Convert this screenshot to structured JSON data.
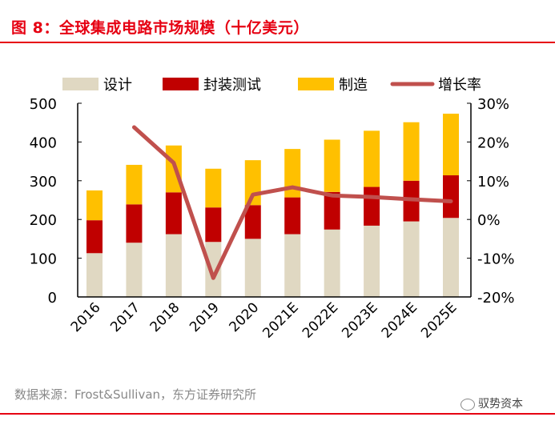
{
  "title": "图 8：全球集成电路市场规模（十亿美元）",
  "source": "数据来源：Frost&Sullivan，东方证券研究所",
  "watermark": "驭势资本",
  "colors": {
    "accent": "#e60012",
    "design": "#e0d8c2",
    "packaging": "#c00000",
    "manufacturing": "#ffc000",
    "growth": "#c0504d"
  },
  "chart_data": {
    "type": "bar",
    "stacked": true,
    "categories": [
      "2016",
      "2017",
      "2018",
      "2019",
      "2020",
      "2021E",
      "2022E",
      "2023E",
      "2024E",
      "2025E"
    ],
    "series": [
      {
        "name": "设计",
        "values": [
          113,
          140,
          162,
          142,
          150,
          162,
          174,
          184,
          195,
          204
        ]
      },
      {
        "name": "封装测试",
        "values": [
          85,
          99,
          108,
          89,
          87,
          95,
          97,
          100,
          105,
          110
        ]
      },
      {
        "name": "制造",
        "values": [
          77,
          102,
          121,
          100,
          116,
          125,
          135,
          145,
          151,
          159
        ]
      }
    ],
    "line_series": {
      "name": "增长率",
      "axis": "right",
      "values": [
        null,
        23.8,
        14.6,
        -15.1,
        6.4,
        8.3,
        6.2,
        5.8,
        5.2,
        4.7
      ]
    },
    "ylim": [
      0,
      500
    ],
    "yticks": [
      "0",
      "100",
      "200",
      "300",
      "400",
      "500"
    ],
    "y2lim": [
      -20,
      30
    ],
    "y2ticks": [
      "-20%",
      "-10%",
      "0%",
      "10%",
      "20%",
      "30%"
    ],
    "legend": "top",
    "grid": false
  }
}
